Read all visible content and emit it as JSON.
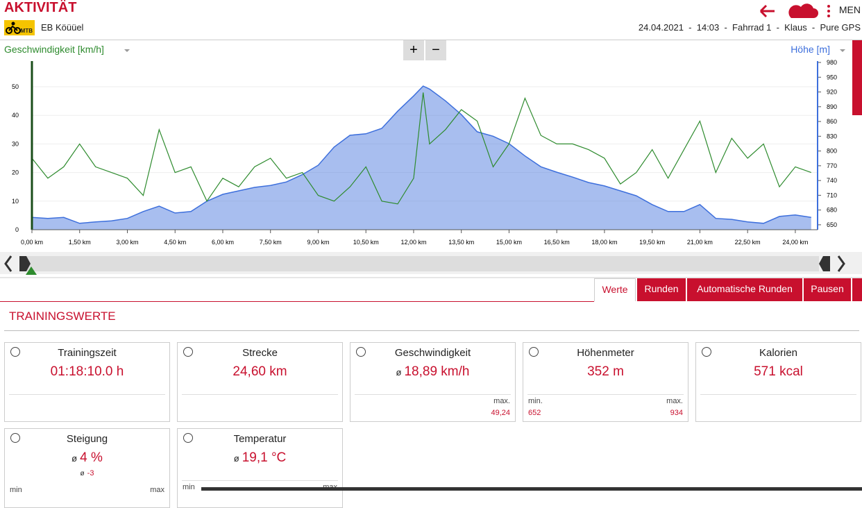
{
  "header": {
    "title": "AKTIVITÄT",
    "badge": "MTB",
    "name": "EB Köüüel",
    "info": "24.04.2021  -  14:03  -  Fahrrad 1  -  Klaus  -  Pure GPS",
    "menu": "MEN"
  },
  "zoom": {
    "in": "+",
    "out": "−"
  },
  "chart_data": {
    "type": "line",
    "ylabel": "Geschwindigkeit [km/h]",
    "y2label": "Höhe [m]",
    "x": [
      0,
      0.5,
      1,
      1.5,
      2,
      2.5,
      3,
      3.5,
      4,
      4.5,
      5,
      5.5,
      6,
      6.5,
      7,
      7.5,
      8,
      8.5,
      9,
      9.5,
      10,
      10.5,
      11,
      11.5,
      12,
      12.3,
      12.5,
      13,
      13.5,
      14,
      14.5,
      15,
      15.5,
      16,
      16.5,
      17,
      17.5,
      18,
      18.5,
      19,
      19.5,
      20,
      20.5,
      21,
      21.5,
      22,
      22.5,
      23,
      23.5,
      24,
      24.5
    ],
    "series": [
      {
        "name": "Höhe [m]",
        "color": "#3d6fdc",
        "fill": true,
        "axis": "y2",
        "values": [
          665,
          663,
          665,
          653,
          656,
          658,
          663,
          677,
          688,
          674,
          677,
          698,
          712,
          719,
          726,
          730,
          737,
          752,
          771,
          808,
          832,
          835,
          846,
          881,
          912,
          932,
          926,
          902,
          874,
          839,
          830,
          815,
          790,
          768,
          757,
          747,
          736,
          729,
          719,
          709,
          691,
          677,
          677,
          691,
          663,
          661,
          656,
          653,
          667,
          670,
          665
        ]
      },
      {
        "name": "Geschwindigkeit [km/h]",
        "color": "#2e8b2e",
        "values": [
          25,
          18,
          22,
          30,
          22,
          20,
          18,
          12,
          35,
          20,
          22,
          10,
          18,
          15,
          22,
          25,
          18,
          20,
          12,
          10,
          15,
          22,
          10,
          9,
          18,
          48,
          30,
          35,
          42,
          38,
          22,
          30,
          46,
          33,
          30,
          30,
          28,
          25,
          16,
          20,
          28,
          18,
          28,
          38,
          20,
          32,
          25,
          30,
          15,
          22,
          20
        ]
      }
    ],
    "xlim": [
      0,
      24.7
    ],
    "xticks": [
      {
        "value": 0,
        "label": "0,00 km"
      },
      {
        "value": 1.5,
        "label": "1,50 km"
      },
      {
        "value": 3,
        "label": "3,00 km"
      },
      {
        "value": 4.5,
        "label": "4,50 km"
      },
      {
        "value": 6,
        "label": "6,00 km"
      },
      {
        "value": 7.5,
        "label": "7,50 km"
      },
      {
        "value": 9,
        "label": "9,00 km"
      },
      {
        "value": 10.5,
        "label": "10,50 km"
      },
      {
        "value": 12,
        "label": "12,00 km"
      },
      {
        "value": 13.5,
        "label": "13,50 km"
      },
      {
        "value": 15,
        "label": "15,00 km"
      },
      {
        "value": 16.5,
        "label": "16,50 km"
      },
      {
        "value": 18,
        "label": "18,00 km"
      },
      {
        "value": 19.5,
        "label": "19,50 km"
      },
      {
        "value": 21,
        "label": "21,00 km"
      },
      {
        "value": 22.5,
        "label": "22,50 km"
      },
      {
        "value": 24,
        "label": "24,00 km"
      }
    ],
    "ylim": [
      0,
      58.5
    ],
    "yticks": [
      0,
      10,
      20,
      30,
      40,
      50
    ],
    "y2lim": [
      640,
      980
    ],
    "y2ticks": [
      650,
      680,
      710,
      740,
      770,
      800,
      830,
      860,
      890,
      920,
      950,
      980
    ],
    "grid": true
  },
  "tabs": [
    "Werte",
    "Runden",
    "Automatische Runden",
    "Pausen"
  ],
  "section": "TRAININGSWERTE",
  "cards": [
    {
      "title": "Trainingszeit",
      "value": "01:18:10.0 h"
    },
    {
      "title": "Strecke",
      "value": "24,60 km"
    },
    {
      "title": "Geschwindigkeit",
      "prefix": "ø",
      "value": "18,89 km/h",
      "max_label": "max.",
      "max": "49,24"
    },
    {
      "title": "Höhenmeter",
      "value": "352 m",
      "min_label": "min.",
      "min": "652",
      "max_label": "max.",
      "max": "934"
    },
    {
      "title": "Kalorien",
      "value": "571 kcal"
    },
    {
      "title": "Steigung",
      "prefix": "ø",
      "value": "4 %",
      "sub_prefix": "ø",
      "sub": "-3",
      "min_label": "min",
      "max_label": "max"
    },
    {
      "title": "Temperatur",
      "prefix": "ø",
      "value": "19,1 °C",
      "min_label": "min",
      "max_label": "max"
    }
  ]
}
